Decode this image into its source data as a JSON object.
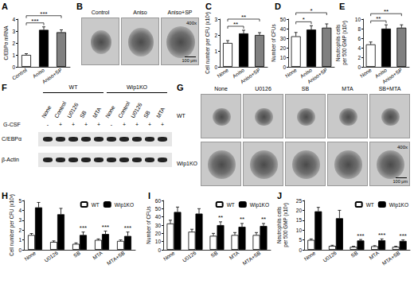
{
  "chart_data": [
    {
      "panel": "A",
      "type": "bar",
      "ylabel": "C/EBPα mRNA",
      "categories": [
        "Control",
        "Aniso",
        "Aniso+SP"
      ],
      "values": [
        1.0,
        3.1,
        2.9
      ],
      "errors": [
        0.1,
        0.25,
        0.2
      ],
      "colors": [
        "#ffffff",
        "#000000",
        "#808080"
      ],
      "ylim": [
        0,
        4
      ],
      "yticks": [
        0,
        1,
        2,
        3,
        4
      ],
      "grid": false,
      "significance": [
        {
          "from": "Control",
          "to": "Aniso",
          "label": "***"
        },
        {
          "from": "Control",
          "to": "Aniso+SP",
          "label": "***"
        }
      ]
    },
    {
      "panel": "C",
      "type": "bar",
      "ylabel": "Cell number per CFU (x10³)",
      "categories": [
        "None",
        "Aniso",
        "Aniso+SP"
      ],
      "values": [
        1.5,
        2.1,
        2.0
      ],
      "errors": [
        0.15,
        0.2,
        0.15
      ],
      "colors": [
        "#ffffff",
        "#000000",
        "#808080"
      ],
      "ylim": [
        0,
        3
      ],
      "yticks": [
        0,
        1,
        2,
        3
      ],
      "grid": false,
      "significance": [
        {
          "from": "None",
          "to": "Aniso",
          "label": "**"
        },
        {
          "from": "None",
          "to": "Aniso+SP",
          "label": "**"
        }
      ]
    },
    {
      "panel": "D",
      "type": "bar",
      "ylabel": "Number of CFUs",
      "categories": [
        "None",
        "Aniso",
        "Aniso+SP"
      ],
      "values": [
        32,
        39,
        41
      ],
      "errors": [
        4,
        4,
        4
      ],
      "colors": [
        "#ffffff",
        "#000000",
        "#808080"
      ],
      "ylim": [
        0,
        50
      ],
      "yticks": [
        0,
        10,
        20,
        30,
        40,
        50
      ],
      "grid": false,
      "significance": [
        {
          "from": "None",
          "to": "Aniso",
          "label": "*"
        },
        {
          "from": "None",
          "to": "Aniso+SP",
          "label": "*"
        }
      ]
    },
    {
      "panel": "E",
      "type": "bar",
      "ylabel": "Neutrophils cells\nper 500 GMP (x10³)",
      "categories": [
        "None",
        "Aniso",
        "Aniso+SP"
      ],
      "values": [
        4.7,
        8.0,
        8.2
      ],
      "errors": [
        0.5,
        0.8,
        0.6
      ],
      "colors": [
        "#ffffff",
        "#000000",
        "#808080"
      ],
      "ylim": [
        0,
        10
      ],
      "yticks": [
        0,
        2,
        4,
        6,
        8,
        10
      ],
      "grid": false,
      "significance": [
        {
          "from": "None",
          "to": "Aniso",
          "label": "**"
        },
        {
          "from": "None",
          "to": "Aniso+SP",
          "label": "**"
        }
      ]
    },
    {
      "panel": "H",
      "type": "bar",
      "ylabel": "Cell number per CFU (x10³)",
      "categories": [
        "None",
        "U0126",
        "SB",
        "MTA",
        "MTA+SB"
      ],
      "series": [
        {
          "name": "WT",
          "color": "#ffffff",
          "values": [
            1.5,
            0.8,
            0.6,
            1.0,
            0.9
          ],
          "errors": [
            0.15,
            0.1,
            0.1,
            0.1,
            0.1
          ]
        },
        {
          "name": "Wip1KO",
          "color": "#000000",
          "values": [
            4.3,
            3.6,
            1.5,
            1.6,
            1.4
          ],
          "errors": [
            0.5,
            0.6,
            0.3,
            0.3,
            0.4
          ]
        }
      ],
      "ylim": [
        0,
        5
      ],
      "yticks": [
        0,
        1,
        2,
        3,
        4,
        5
      ],
      "grid": false,
      "legend": "upper right",
      "significance": [
        {
          "category": "SB",
          "series": "Wip1KO",
          "label": "***"
        },
        {
          "category": "MTA",
          "series": "Wip1KO",
          "label": "***"
        },
        {
          "category": "MTA+SB",
          "series": "Wip1KO",
          "label": "***"
        }
      ]
    },
    {
      "panel": "I",
      "type": "bar",
      "ylabel": "Number of CFUs",
      "categories": [
        "None",
        "U0126",
        "SB",
        "MTA",
        "MTA+SB"
      ],
      "series": [
        {
          "name": "WT",
          "color": "#ffffff",
          "values": [
            32,
            22,
            17,
            18,
            18
          ],
          "errors": [
            4,
            3,
            3,
            3,
            3
          ]
        },
        {
          "name": "Wip1KO",
          "color": "#000000",
          "values": [
            46,
            44,
            30,
            28,
            29
          ],
          "errors": [
            6,
            6,
            4,
            4,
            3
          ]
        }
      ],
      "ylim": [
        0,
        60
      ],
      "yticks": [
        0,
        10,
        20,
        30,
        40,
        50,
        60
      ],
      "grid": false,
      "legend": "upper right",
      "significance": [
        {
          "category": "SB",
          "series": "Wip1KO",
          "label": "**"
        },
        {
          "category": "MTA",
          "series": "Wip1KO",
          "label": "**"
        },
        {
          "category": "MTA+SB",
          "series": "Wip1KO",
          "label": "**"
        }
      ]
    },
    {
      "panel": "J",
      "type": "bar",
      "ylabel": "Neutrophils cells\nper 500 GMP (x10³)",
      "categories": [
        "None",
        "U0126",
        "SB",
        "MTA",
        "MTA+SB"
      ],
      "series": [
        {
          "name": "WT",
          "color": "#ffffff",
          "values": [
            5,
            2,
            1.5,
            1.8,
            1.5
          ],
          "errors": [
            0.5,
            0.3,
            0.3,
            0.3,
            0.3
          ]
        },
        {
          "name": "Wip1KO",
          "color": "#000000",
          "values": [
            19.5,
            16,
            4.7,
            4.8,
            4.5
          ],
          "errors": [
            2,
            4,
            0.5,
            0.7,
            0.5
          ]
        }
      ],
      "ylim": [
        0,
        25
      ],
      "yticks": [
        0,
        5,
        10,
        15,
        20,
        25
      ],
      "grid": false,
      "legend": "upper right",
      "significance": [
        {
          "category": "SB",
          "series": "Wip1KO",
          "label": "***"
        },
        {
          "category": "MTA",
          "series": "Wip1KO",
          "label": "***"
        },
        {
          "category": "MTA+SB",
          "series": "Wip1KO",
          "label": "***"
        }
      ]
    }
  ],
  "panels": [
    {
      "panel": "B",
      "type": "images",
      "labels": [
        "Control",
        "Aniso",
        "Aniso+SP"
      ],
      "magnification": "400x",
      "scale_bar": "100 μm"
    },
    {
      "panel": "F",
      "type": "western_blot",
      "groups": [
        "WT",
        "Wip1KO"
      ],
      "treatment_label": "G-CSF",
      "treatment": [
        "-",
        "+",
        "+",
        "+",
        "+",
        "-",
        "+",
        "+",
        "+",
        "+"
      ],
      "lanes": [
        "None",
        "Control",
        "U0126",
        "SB",
        "MTA",
        "None",
        "Control",
        "U0126",
        "SB",
        "MTA"
      ],
      "bands": [
        "C/EBPα",
        "β-Actin"
      ]
    },
    {
      "panel": "G",
      "type": "images",
      "rows": [
        "WT",
        "Wip1KO"
      ],
      "columns": [
        "None",
        "U0126",
        "SB",
        "MTA",
        "SB+MTA"
      ],
      "magnification": "400x",
      "scale_bar": "100 μm"
    }
  ]
}
